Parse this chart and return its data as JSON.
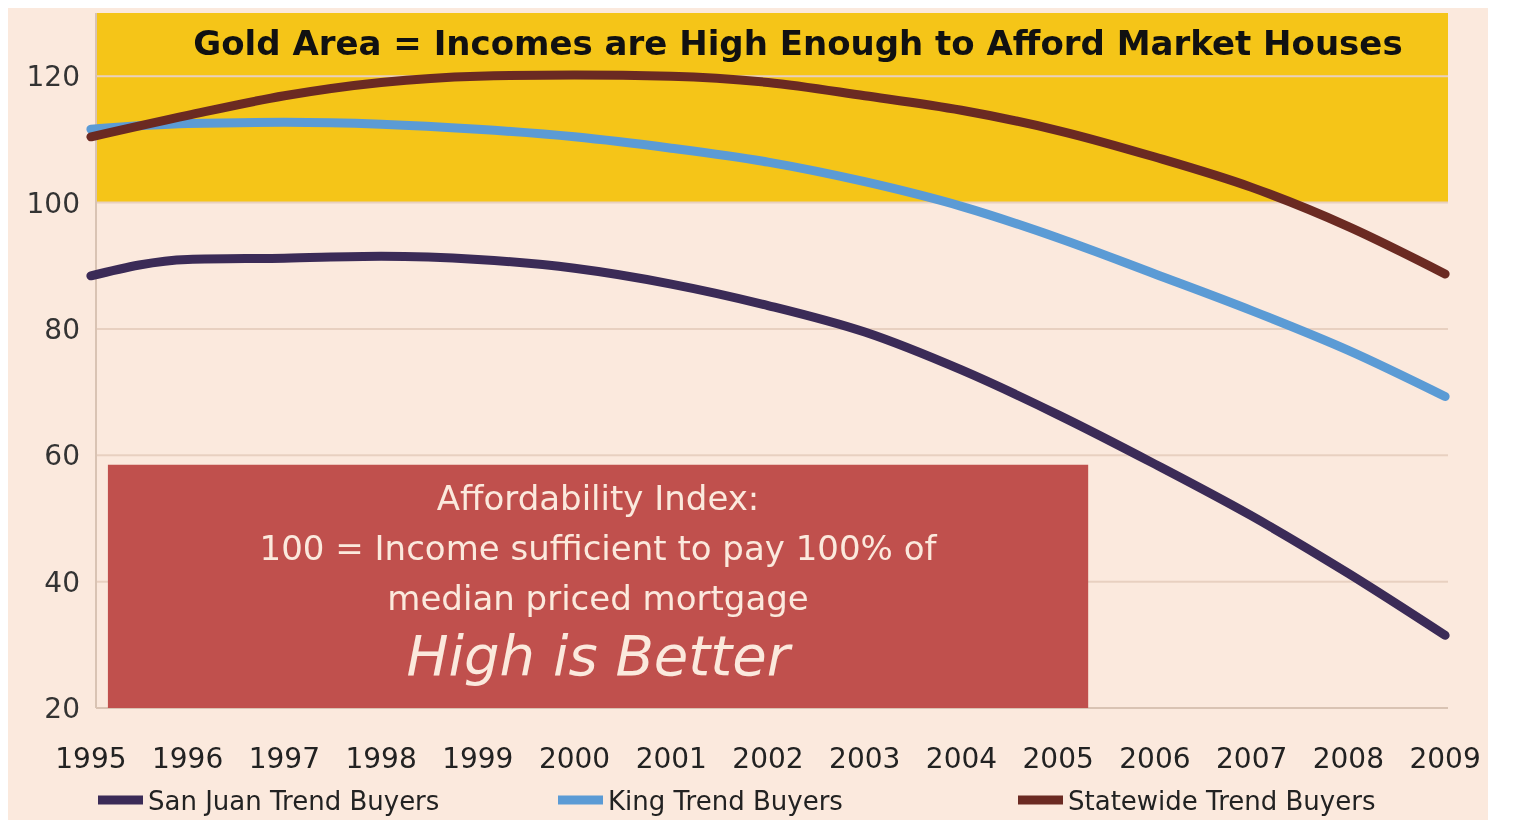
{
  "chart_data": {
    "type": "line",
    "categories": [
      "1995",
      "1996",
      "1997",
      "1998",
      "1999",
      "2000",
      "2001",
      "2002",
      "2003",
      "2004",
      "2005",
      "2006",
      "2007",
      "2008",
      "2009"
    ],
    "series": [
      {
        "name": "San Juan Trend Buyers",
        "color": "#3b2b57",
        "values": [
          88.4,
          91,
          91.2,
          91.5,
          91,
          89.6,
          87.1,
          83.7,
          79.5,
          73.5,
          66.4,
          58.6,
          50.4,
          41.3,
          31.5
        ]
      },
      {
        "name": "King Trend Buyers",
        "color": "#5b9bd5",
        "values": [
          111.6,
          112.5,
          112.7,
          112.4,
          111.6,
          110.4,
          108.6,
          106.4,
          103.3,
          99.4,
          94.4,
          88.7,
          82.9,
          76.6,
          69.3
        ]
      },
      {
        "name": "Statewide Trend Buyers",
        "color": "#6b2a22",
        "values": [
          110.4,
          113.8,
          116.9,
          119,
          120,
          120.2,
          120,
          119,
          116.9,
          114.6,
          111.4,
          107.2,
          102.4,
          96.2,
          88.7
        ]
      }
    ],
    "ylim": [
      20,
      130
    ],
    "yticks": [
      20,
      40,
      60,
      80,
      100,
      120
    ],
    "grid": "y",
    "legend": "bottom",
    "marker": "none",
    "line_style": "solid",
    "bands": [
      {
        "axis": "y",
        "from": 100,
        "to": 130,
        "label": "Gold Area = Incomes are High Enough to Afford Market Houses",
        "color": "#f5c518"
      }
    ],
    "annotations": [
      "Affordability Index:",
      "100 = Income sufficient to pay 100% of",
      "median priced mortgage",
      "High is Better"
    ]
  }
}
